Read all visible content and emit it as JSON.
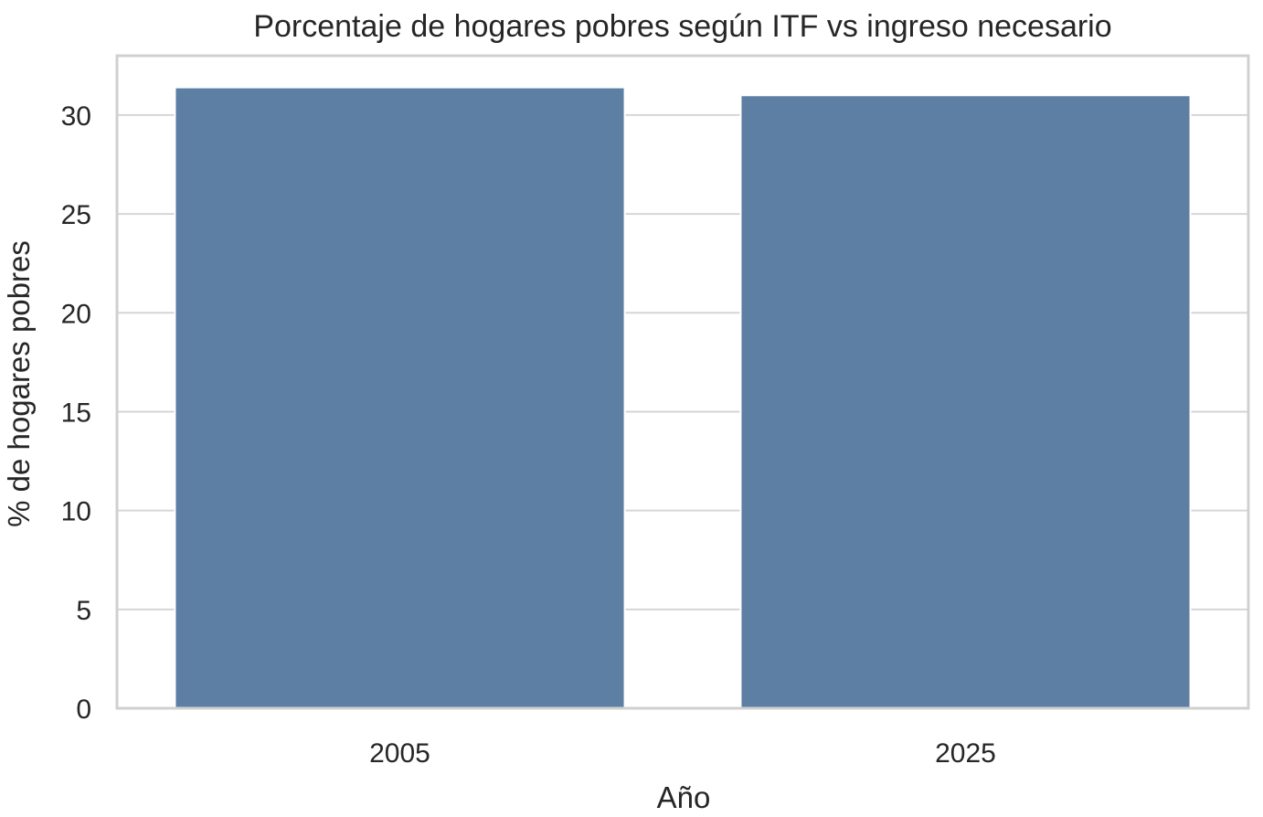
{
  "chart_data": {
    "type": "bar",
    "title": "Porcentaje de hogares pobres según ITF vs ingreso necesario",
    "xlabel": "Año",
    "ylabel": "% de hogares pobres",
    "categories": [
      "2005",
      "2025"
    ],
    "values": [
      31.4,
      31.0
    ],
    "ylim": [
      0,
      33
    ],
    "yticks": [
      0,
      5,
      10,
      15,
      20,
      25,
      30
    ],
    "grid": true,
    "bar_color": "#5d7fa3",
    "grid_color": "#d6d6d6",
    "frame_color": "#d0d0d0"
  }
}
